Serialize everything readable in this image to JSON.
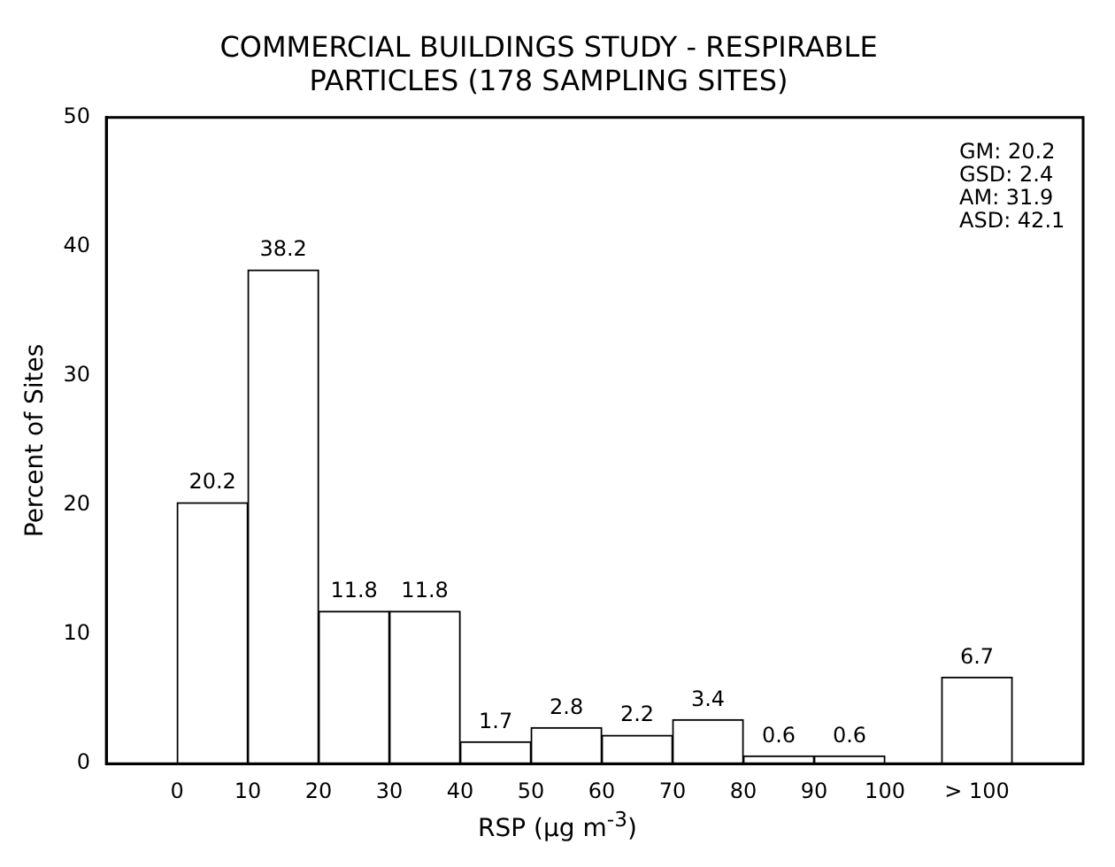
{
  "chart_data": {
    "type": "histogram",
    "title": "COMMERCIAL BUILDINGS STUDY - RESPIRABLE PARTICLES (178 SAMPLING SITES)",
    "xlabel": "RSP (μg m$^{-3}$)",
    "ylabel": "Percent of Sites",
    "bins": [
      0,
      10,
      20,
      30,
      40,
      50,
      60,
      70,
      80,
      90,
      100,
      108,
      118
    ],
    "values": [
      20.2,
      38.2,
      11.8,
      11.8,
      1.7,
      2.8,
      2.2,
      3.4,
      0.6,
      0.6,
      null,
      6.7
    ],
    "color": "#ffffff",
    "xlim": [
      -10,
      128
    ],
    "xticks": [
      0,
      10,
      20,
      30,
      40,
      50,
      60,
      70,
      80,
      90,
      100,
      {
        "value": 113,
        "label": "> 100"
      }
    ],
    "ylim": [
      0,
      50
    ],
    "yticks": [
      0,
      10,
      20,
      30,
      40,
      50
    ],
    "data_labels": true,
    "grid": false,
    "legend": false,
    "annotations": [
      "GM: 20.2",
      "GSD: 2.4",
      "AM: 31.9",
      "ASD: 42.1"
    ]
  }
}
